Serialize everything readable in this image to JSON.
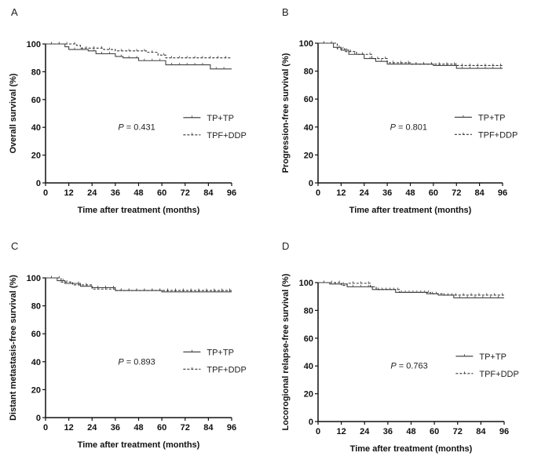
{
  "chart_data": [
    {
      "type": "line",
      "panel": "A",
      "ylabel": "Overall survival (%)",
      "xlabel": "Time after treatment (months)",
      "xlim": [
        0,
        96
      ],
      "ylim": [
        0,
        100
      ],
      "xticks": [
        "0",
        "12",
        "24",
        "36",
        "48",
        "60",
        "72",
        "84",
        "96"
      ],
      "yticks": [
        "0",
        "20",
        "40",
        "60",
        "80",
        "100"
      ],
      "p_prefix": "P",
      "p_value": "= 0.431",
      "series": [
        {
          "name": "TP+TP",
          "style": "solid",
          "points": [
            [
              0,
              100
            ],
            [
              10,
              98
            ],
            [
              12,
              96
            ],
            [
              22,
              95
            ],
            [
              26,
              93
            ],
            [
              36,
              91
            ],
            [
              40,
              90
            ],
            [
              48,
              88
            ],
            [
              62,
              85
            ],
            [
              85,
              82
            ],
            [
              96,
              82
            ]
          ]
        },
        {
          "name": "TPF+DDP",
          "style": "dashed",
          "points": [
            [
              0,
              100
            ],
            [
              16,
              99
            ],
            [
              18,
              97
            ],
            [
              30,
              96
            ],
            [
              36,
              95
            ],
            [
              52,
              94
            ],
            [
              58,
              92
            ],
            [
              62,
              90
            ],
            [
              96,
              90
            ]
          ]
        }
      ]
    },
    {
      "type": "line",
      "panel": "B",
      "ylabel": "Progression-free survival (%)",
      "xlabel": "Time after treatment (months)",
      "xlim": [
        0,
        96
      ],
      "ylim": [
        0,
        100
      ],
      "xticks": [
        "0",
        "12",
        "24",
        "36",
        "48",
        "60",
        "72",
        "84",
        "96"
      ],
      "yticks": [
        "0",
        "20",
        "40",
        "60",
        "80",
        "100"
      ],
      "p_prefix": "P",
      "p_value": "= 0.801",
      "series": [
        {
          "name": "TP+TP",
          "style": "solid",
          "points": [
            [
              0,
              100
            ],
            [
              8,
              97
            ],
            [
              12,
              95
            ],
            [
              16,
              92
            ],
            [
              24,
              89
            ],
            [
              30,
              87
            ],
            [
              36,
              85
            ],
            [
              60,
              84
            ],
            [
              72,
              82
            ],
            [
              96,
              82
            ]
          ]
        },
        {
          "name": "TPF+DDP",
          "style": "dashed",
          "points": [
            [
              0,
              100
            ],
            [
              10,
              96
            ],
            [
              14,
              94
            ],
            [
              20,
              92
            ],
            [
              28,
              89
            ],
            [
              36,
              86
            ],
            [
              48,
              85
            ],
            [
              72,
              84
            ],
            [
              96,
              84
            ]
          ]
        }
      ]
    },
    {
      "type": "line",
      "panel": "C",
      "ylabel": "Distant metastasis-free survival (%)",
      "xlabel": "Time after treatment (months)",
      "xlim": [
        0,
        96
      ],
      "ylim": [
        0,
        100
      ],
      "xticks": [
        "0",
        "12",
        "24",
        "36",
        "48",
        "60",
        "72",
        "84",
        "96"
      ],
      "yticks": [
        "0",
        "20",
        "40",
        "60",
        "80",
        "100"
      ],
      "p_prefix": "P",
      "p_value": "= 0.893",
      "series": [
        {
          "name": "TP+TP",
          "style": "solid",
          "points": [
            [
              0,
              100
            ],
            [
              6,
              98
            ],
            [
              10,
              96
            ],
            [
              18,
              94
            ],
            [
              24,
              93
            ],
            [
              36,
              91
            ],
            [
              60,
              90
            ],
            [
              96,
              90
            ]
          ]
        },
        {
          "name": "TPF+DDP",
          "style": "dashed",
          "points": [
            [
              0,
              100
            ],
            [
              8,
              97
            ],
            [
              14,
              95
            ],
            [
              24,
              92
            ],
            [
              36,
              91
            ],
            [
              96,
              90
            ]
          ]
        }
      ]
    },
    {
      "type": "line",
      "panel": "D",
      "ylabel": "Locorogional relapse-free survival (%)",
      "xlabel": "Time after treatment (months)",
      "xlim": [
        0,
        96
      ],
      "ylim": [
        0,
        100
      ],
      "xticks": [
        "0",
        "12",
        "24",
        "36",
        "48",
        "60",
        "72",
        "84",
        "96"
      ],
      "yticks": [
        "0",
        "20",
        "40",
        "60",
        "80",
        "100"
      ],
      "p_prefix": "P",
      "p_value": "= 0.763",
      "series": [
        {
          "name": "TP+TP",
          "style": "solid",
          "points": [
            [
              0,
              100
            ],
            [
              6,
              99
            ],
            [
              15,
              97
            ],
            [
              28,
              95
            ],
            [
              40,
              93
            ],
            [
              56,
              92
            ],
            [
              62,
              91
            ],
            [
              70,
              89
            ],
            [
              96,
              89
            ]
          ]
        },
        {
          "name": "TPF+DDP",
          "style": "dashed",
          "points": [
            [
              0,
              100
            ],
            [
              12,
              98
            ],
            [
              15,
              99.5
            ],
            [
              27,
              97
            ],
            [
              30,
              95
            ],
            [
              42,
              93
            ],
            [
              58,
              92
            ],
            [
              64,
              91
            ],
            [
              96,
              91
            ]
          ]
        }
      ]
    }
  ]
}
